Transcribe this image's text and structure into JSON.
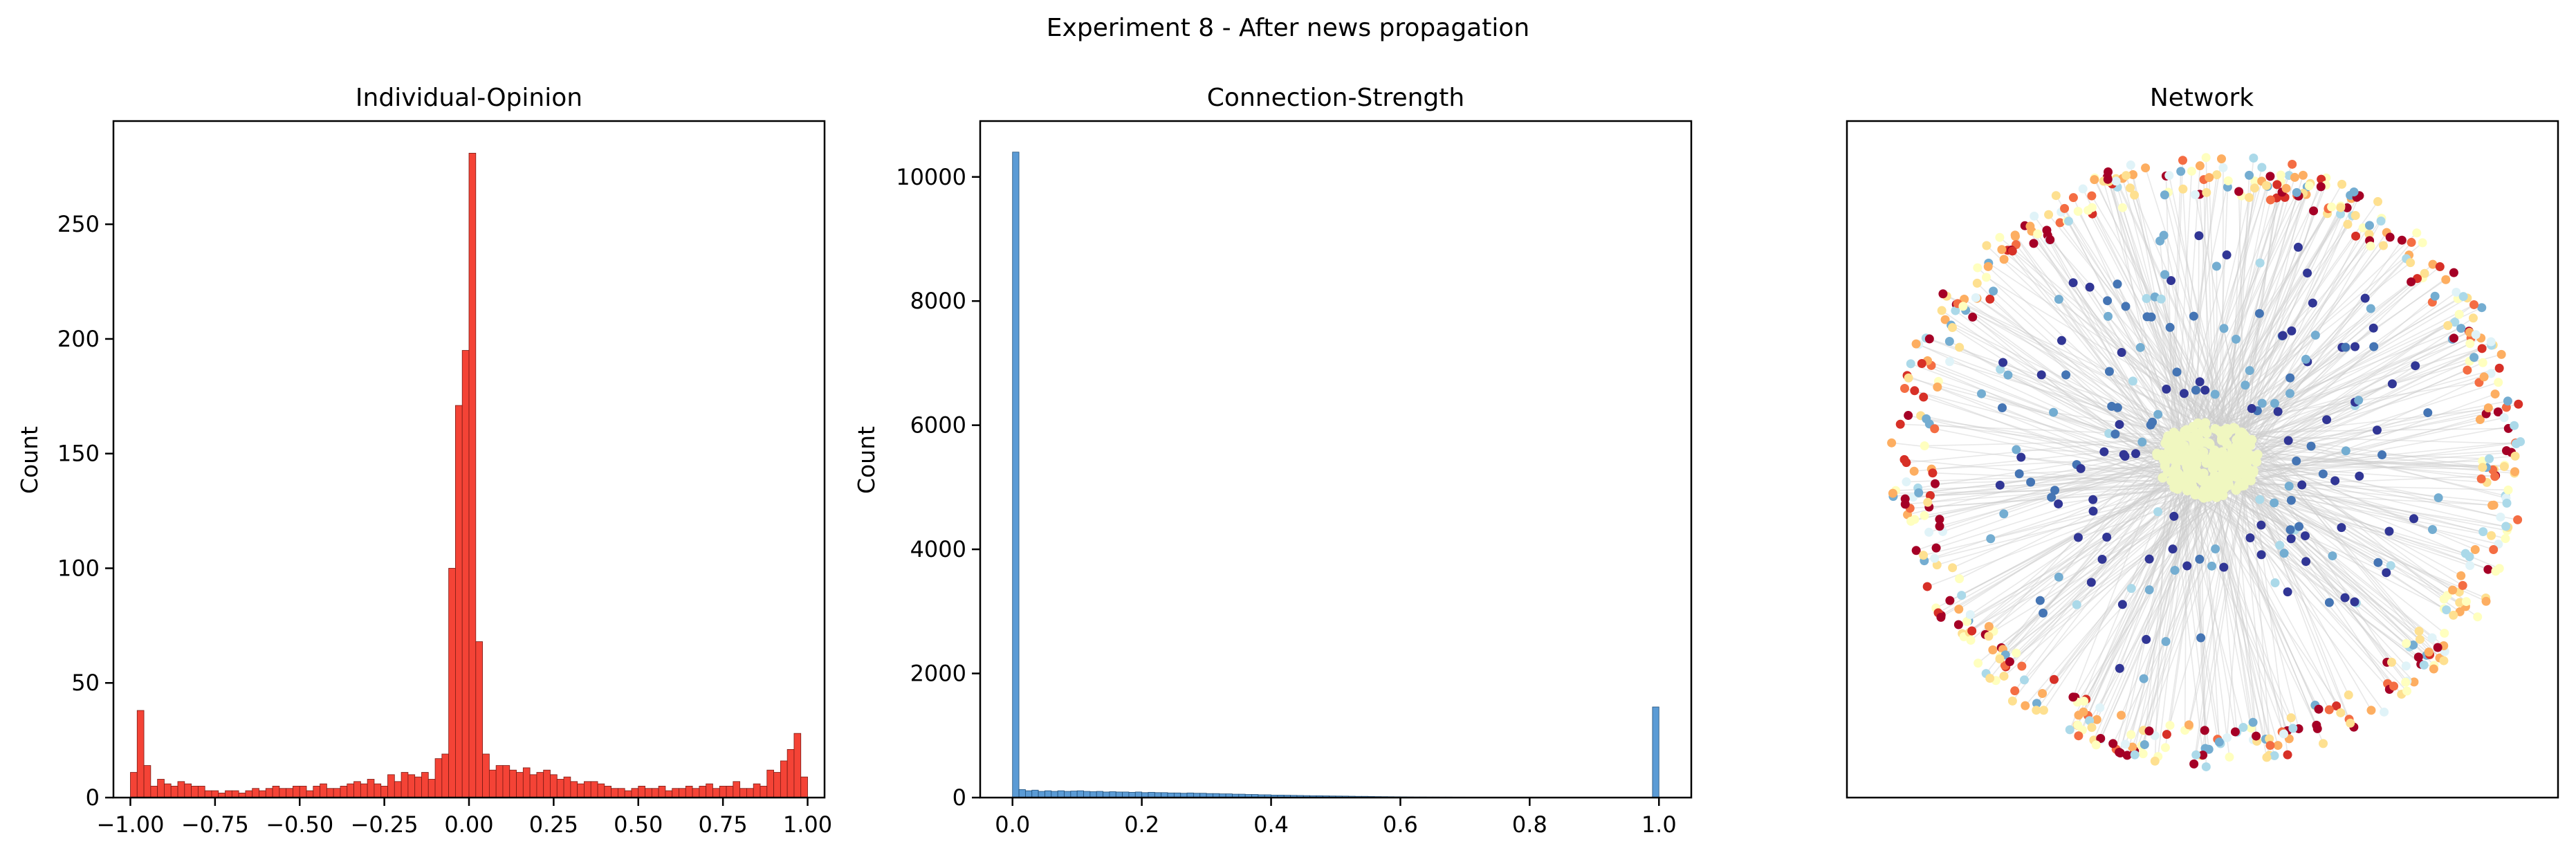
{
  "figure": {
    "suptitle": "Experiment 8 - After news propagation"
  },
  "chart_data": [
    {
      "type": "bar",
      "title": "Individual-Opinion",
      "xlabel": "",
      "ylabel": "Count",
      "xlim": [
        -1.05,
        1.05
      ],
      "ylim": [
        0,
        295
      ],
      "xticks": [
        "−1.00",
        "−0.75",
        "−0.50",
        "−0.25",
        "0.00",
        "0.25",
        "0.50",
        "0.75",
        "1.00"
      ],
      "yticks": [
        "0",
        "50",
        "100",
        "150",
        "200",
        "250"
      ],
      "bin_range": [
        -1.0,
        1.0
      ],
      "bin_count": 100,
      "counts": [
        11,
        38,
        14,
        5,
        8,
        6,
        5,
        7,
        6,
        5,
        5,
        3,
        3,
        2,
        3,
        3,
        2,
        3,
        4,
        3,
        4,
        5,
        4,
        4,
        5,
        5,
        3,
        5,
        6,
        4,
        4,
        5,
        6,
        7,
        6,
        8,
        6,
        5,
        10,
        7,
        11,
        10,
        9,
        11,
        8,
        17,
        19,
        100,
        171,
        195,
        281,
        68,
        19,
        12,
        14,
        14,
        12,
        11,
        13,
        10,
        11,
        12,
        10,
        8,
        9,
        7,
        6,
        7,
        7,
        6,
        5,
        4,
        4,
        3,
        4,
        5,
        4,
        4,
        5,
        3,
        4,
        4,
        5,
        4,
        5,
        6,
        4,
        5,
        5,
        7,
        4,
        4,
        6,
        5,
        12,
        11,
        16,
        21,
        28,
        9
      ],
      "bar_color": "#f44336",
      "edge_color": "#7a1a14",
      "grid": false
    },
    {
      "type": "bar",
      "title": "Connection-Strength",
      "xlabel": "",
      "ylabel": "Count",
      "xlim": [
        -0.05,
        1.05
      ],
      "ylim": [
        0,
        10900
      ],
      "xticks": [
        "0.0",
        "0.2",
        "0.4",
        "0.6",
        "0.8",
        "1.0"
      ],
      "yticks": [
        "0",
        "2000",
        "4000",
        "6000",
        "8000",
        "10000"
      ],
      "bin_range": [
        0.0,
        1.0
      ],
      "bin_count": 100,
      "counts": [
        10400,
        130,
        110,
        120,
        100,
        110,
        100,
        110,
        100,
        105,
        110,
        100,
        95,
        100,
        90,
        95,
        90,
        90,
        85,
        90,
        80,
        85,
        80,
        80,
        75,
        75,
        70,
        75,
        70,
        70,
        65,
        65,
        60,
        60,
        55,
        55,
        50,
        50,
        45,
        45,
        40,
        40,
        38,
        36,
        34,
        32,
        30,
        30,
        28,
        26,
        25,
        24,
        22,
        20,
        20,
        18,
        16,
        15,
        14,
        13,
        12,
        11,
        10,
        10,
        9,
        9,
        8,
        8,
        7,
        7,
        6,
        6,
        5,
        5,
        5,
        4,
        4,
        4,
        3,
        3,
        3,
        3,
        2,
        2,
        2,
        2,
        2,
        2,
        1,
        1,
        1,
        1,
        1,
        1,
        1,
        1,
        1,
        1,
        1,
        1460
      ],
      "bar_color": "#5b9bd5",
      "edge_color": "#1f4e79",
      "grid": false
    },
    {
      "type": "scatter",
      "title": "Network",
      "xlabel": "",
      "ylabel": "",
      "axes_visible": false,
      "node_colors": [
        "#313695",
        "#4575b4",
        "#74add1",
        "#abd9e9",
        "#e0f3f8",
        "#ffffbf",
        "#fee090",
        "#fdae61",
        "#f46d43",
        "#d73027",
        "#a50026"
      ],
      "edge_color": "#cccccc",
      "center_cluster_color": "#f0f7c0"
    }
  ]
}
